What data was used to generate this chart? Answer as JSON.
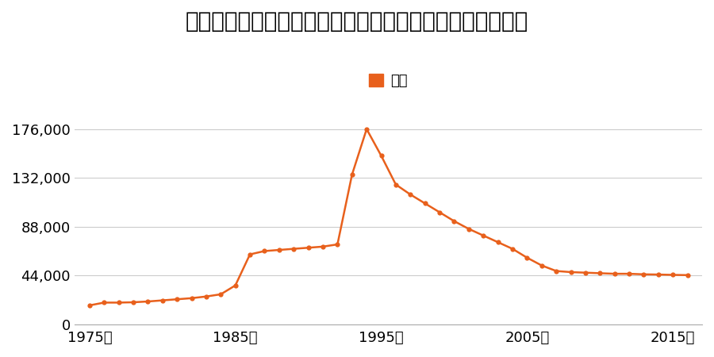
{
  "title": "千葉県成田市並木町字沢山２５番５８ほか１筆の地価推移",
  "legend_label": "価格",
  "line_color": "#e8601c",
  "marker_color": "#e8601c",
  "background_color": "#ffffff",
  "grid_color": "#cccccc",
  "years": [
    1975,
    1976,
    1977,
    1978,
    1979,
    1980,
    1981,
    1982,
    1983,
    1984,
    1985,
    1986,
    1987,
    1988,
    1989,
    1990,
    1991,
    1992,
    1993,
    1994,
    1995,
    1996,
    1997,
    1998,
    1999,
    2000,
    2001,
    2002,
    2003,
    2004,
    2005,
    2006,
    2007,
    2008,
    2009,
    2010,
    2011,
    2012,
    2013,
    2014,
    2015,
    2016
  ],
  "values": [
    17000,
    19500,
    19500,
    19800,
    20500,
    21500,
    22500,
    23500,
    25000,
    27000,
    35000,
    63000,
    66000,
    67000,
    68000,
    69000,
    70000,
    72000,
    135000,
    176000,
    152000,
    126000,
    117000,
    109000,
    101000,
    93000,
    86000,
    80000,
    74000,
    68000,
    60000,
    53000,
    48000,
    47000,
    46500,
    46000,
    45500,
    45500,
    45000,
    44800,
    44500,
    44300
  ],
  "yticks": [
    0,
    44000,
    88000,
    132000,
    176000
  ],
  "ytick_labels": [
    "0",
    "44,000",
    "88,000",
    "132,000",
    "176,000"
  ],
  "xticks": [
    1975,
    1985,
    1995,
    2005,
    2015
  ],
  "xtick_labels": [
    "1975年",
    "1985年",
    "1995年",
    "2005年",
    "2015年"
  ],
  "ylim": [
    0,
    195000
  ],
  "xlim": [
    1974,
    2017
  ],
  "title_fontsize": 20,
  "tick_fontsize": 13,
  "legend_fontsize": 13
}
